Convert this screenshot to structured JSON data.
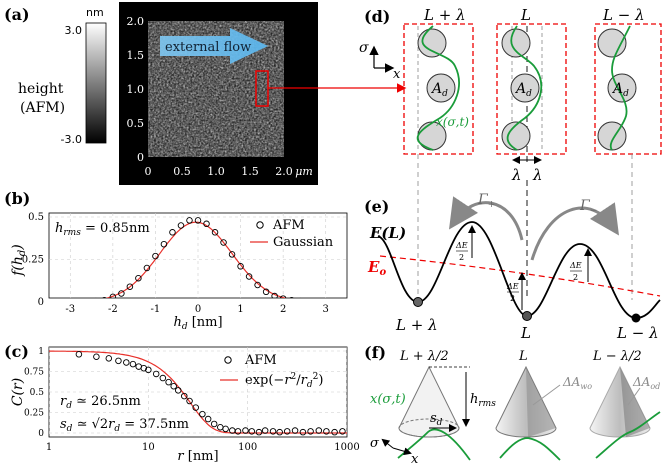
{
  "panels": {
    "a": {
      "label": "(a)",
      "colorbar": {
        "unit": "nm",
        "max_label": "3.0",
        "min_label": "-3.0"
      },
      "ylabel_line1": "height",
      "ylabel_line2": "(AFM)",
      "flow_label": "external flow",
      "y_ticks": [
        "2.0",
        "1.5",
        "1.0",
        "0.5",
        "0"
      ],
      "x_ticks": [
        "0",
        "0.5",
        "1.0",
        "1.5",
        "2.0"
      ],
      "x_unit": "μm"
    },
    "b": {
      "label": "(b)",
      "ylabel": "f(h_d)",
      "xlabel": "h_d [nm]",
      "annotation": "h_rms = 0.85nm",
      "legend": [
        "AFM",
        "Gaussian"
      ]
    },
    "c": {
      "label": "(c)",
      "ylabel": "C(r)",
      "xlabel": "r [nm]",
      "annotation_rd": "r_d ≃ 26.5nm",
      "annotation_sd": "s_d ≃ √2r_d = 37.5nm",
      "legend": [
        "AFM",
        "exp(−r²/r_d²)"
      ]
    },
    "d": {
      "label": "(d)",
      "column_titles": [
        "L + λ",
        "L",
        "L − λ"
      ],
      "sigma": "σ",
      "x": "x",
      "Ad": "A_d",
      "curve": "x(σ,t)",
      "lambda": "λ"
    },
    "e": {
      "label": "(e)",
      "E_L": "E(L)",
      "E_o": "E_o",
      "gamma_plus": "Γ+",
      "gamma_minus": "Γ−",
      "dE_half": "ΔE/2",
      "well_labels": [
        "L + λ",
        "L",
        "L − λ"
      ]
    },
    "f": {
      "label": "(f)",
      "cone_titles": [
        "L + λ/2",
        "L",
        "L − λ/2"
      ],
      "curve": "x(σ,t)",
      "h_rms": "h_rms",
      "s_d": "s_d",
      "dA_wo": "ΔA_wo",
      "dA_od": "ΔA_od",
      "sigma": "σ",
      "x": "x"
    }
  },
  "chart_data": [
    {
      "type": "scatter",
      "title": "",
      "xlabel": "h_d [nm]",
      "ylabel": "f(h_d)",
      "xlim": [
        -3.5,
        3.5
      ],
      "ylim": [
        0,
        0.5
      ],
      "x_ticks": [
        -3,
        -2,
        -1,
        0,
        1,
        2,
        3
      ],
      "y_ticks": [
        0,
        0.25,
        0.5
      ],
      "series": [
        {
          "name": "AFM",
          "style": "open-circle",
          "x": [
            -3.4,
            -3.2,
            -3.0,
            -2.8,
            -2.6,
            -2.4,
            -2.2,
            -2.0,
            -1.8,
            -1.6,
            -1.4,
            -1.2,
            -1.0,
            -0.8,
            -0.6,
            -0.4,
            -0.2,
            0.0,
            0.2,
            0.4,
            0.6,
            0.8,
            1.0,
            1.2,
            1.4,
            1.6,
            1.8,
            2.0,
            2.2,
            2.4,
            2.6,
            2.8,
            3.0,
            3.2,
            3.4
          ],
          "y": [
            0.0,
            0.0,
            0.0,
            0.0,
            0.002,
            0.005,
            0.01,
            0.03,
            0.05,
            0.09,
            0.14,
            0.2,
            0.27,
            0.34,
            0.41,
            0.45,
            0.48,
            0.48,
            0.46,
            0.41,
            0.35,
            0.28,
            0.21,
            0.15,
            0.1,
            0.06,
            0.035,
            0.02,
            0.01,
            0.005,
            0.002,
            0.0,
            0.0,
            0.0,
            0.0
          ]
        },
        {
          "name": "Gaussian",
          "style": "line",
          "color": "#e8302a",
          "sigma": 0.85,
          "mean": -0.05
        }
      ]
    },
    {
      "type": "scatter",
      "title": "",
      "xlabel": "r [nm]",
      "ylabel": "C(r)",
      "xscale": "log",
      "xlim": [
        1,
        1000
      ],
      "ylim": [
        0,
        1
      ],
      "x_ticks": [
        1,
        10,
        100,
        1000
      ],
      "y_ticks": [
        0,
        0.25,
        0.5,
        0.75,
        1
      ],
      "series": [
        {
          "name": "AFM",
          "style": "open-circle",
          "x": [
            2,
            3,
            4,
            5,
            6,
            7,
            8,
            9,
            10,
            12,
            14,
            16,
            18,
            20,
            23,
            26,
            30,
            35,
            40,
            46,
            53,
            60,
            70,
            80,
            95,
            110,
            130,
            150,
            180,
            210,
            250,
            300,
            360,
            430,
            520,
            620,
            750,
            900
          ],
          "y": [
            0.96,
            0.93,
            0.91,
            0.88,
            0.86,
            0.84,
            0.81,
            0.79,
            0.77,
            0.72,
            0.67,
            0.62,
            0.57,
            0.52,
            0.45,
            0.39,
            0.31,
            0.23,
            0.17,
            0.11,
            0.07,
            0.05,
            0.03,
            0.02,
            0.03,
            0.02,
            0.01,
            0.03,
            0.02,
            0.01,
            0.02,
            0.03,
            0.01,
            0.02,
            0.03,
            0.02,
            0.01,
            0.02
          ]
        },
        {
          "name": "exp(−r²/r_d²)",
          "style": "line",
          "color": "#e8302a",
          "r_d": 26.5
        }
      ]
    }
  ]
}
